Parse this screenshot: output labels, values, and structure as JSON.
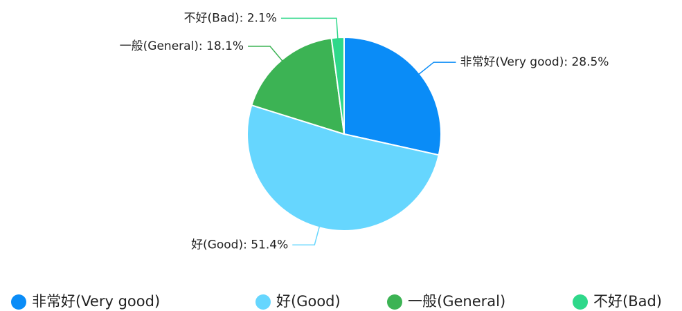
{
  "chart_data": {
    "type": "pie",
    "categories": [
      "非常好(Very good)",
      "好(Good)",
      "一般(General)",
      "不好(Bad)"
    ],
    "values": [
      28.5,
      51.4,
      18.1,
      2.1
    ],
    "value_labels": [
      "非常好(Very good): 28.5%",
      "好(Good): 51.4%",
      "一般(General): 18.1%",
      "不好(Bad): 2.1%"
    ],
    "colors": [
      "#0a8cf7",
      "#66d6fe",
      "#3cb354",
      "#2fd88a"
    ],
    "legend": "bottom"
  }
}
